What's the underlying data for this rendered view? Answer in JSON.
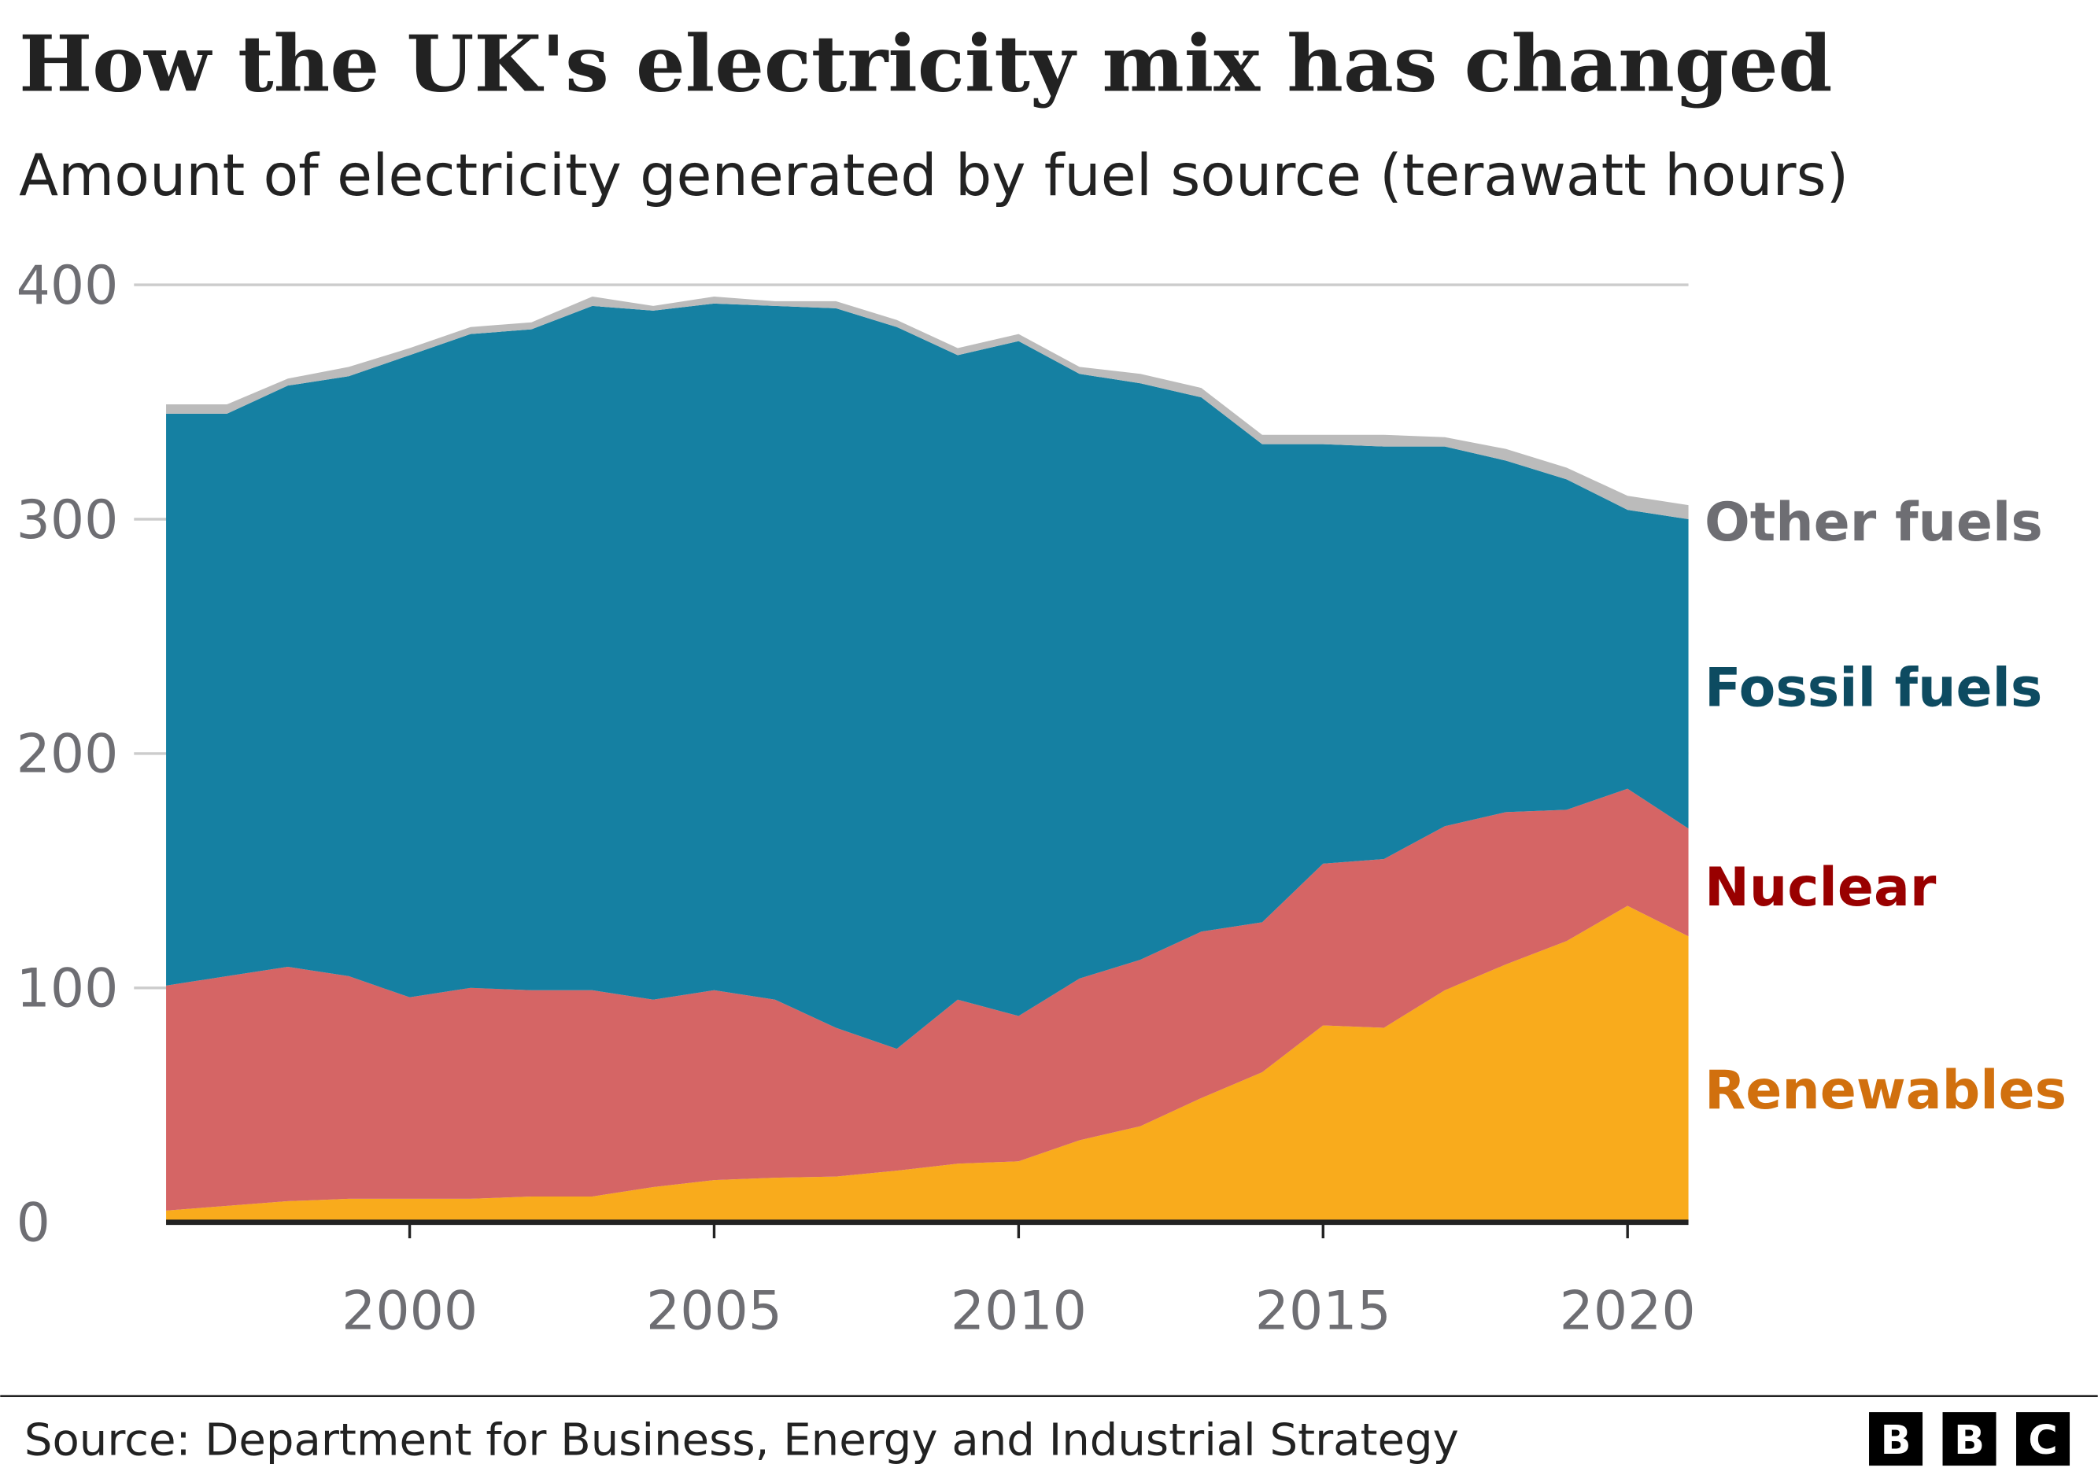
{
  "chart_data": {
    "type": "area",
    "stacked": true,
    "title": "How the UK's electricity mix has changed",
    "subtitle": "Amount of electricity generated by fuel source (terawatt hours)",
    "xlabel": "",
    "ylabel": "",
    "x": [
      1996,
      1997,
      1998,
      1999,
      2000,
      2001,
      2002,
      2003,
      2004,
      2005,
      2006,
      2007,
      2008,
      2009,
      2010,
      2011,
      2012,
      2013,
      2014,
      2015,
      2016,
      2017,
      2018,
      2019,
      2020,
      2021
    ],
    "xlim": [
      1996,
      2021
    ],
    "ylim": [
      0,
      400
    ],
    "xticks": [
      "2000",
      "2005",
      "2010",
      "2015",
      "2020"
    ],
    "yticks": [
      "0",
      "100",
      "200",
      "300",
      "400"
    ],
    "grid": true,
    "legend": "direct labels right",
    "series": [
      {
        "name": "Renewables",
        "color": "#f9ab1c",
        "label_color": "#d1700e",
        "values": [
          5,
          7,
          9,
          10,
          10,
          10,
          11,
          11,
          15,
          18,
          19,
          19.5,
          22,
          25,
          26,
          35,
          41,
          53,
          64,
          84,
          83,
          99,
          110,
          120,
          135,
          122
        ]
      },
      {
        "name": "Nuclear",
        "color": "#d56565",
        "label_color": "#990000",
        "values": [
          96,
          98,
          100,
          95,
          86,
          90,
          88,
          88,
          80,
          81,
          76,
          63.5,
          52,
          70,
          62,
          69,
          71,
          71,
          64,
          69,
          72,
          70,
          65,
          56,
          50,
          46
        ]
      },
      {
        "name": "Fossil fuels",
        "color": "#1580a2",
        "label_color": "#0d4b61",
        "values": [
          244,
          240,
          248,
          256,
          274,
          279,
          282,
          292,
          294,
          293,
          296,
          307,
          308,
          275,
          288,
          258,
          246,
          228,
          204,
          179,
          176,
          162,
          150,
          141,
          119,
          132
        ]
      },
      {
        "name": "Other fuels",
        "color": "#bbbbbb",
        "label_color": "#6e6e73",
        "values": [
          4,
          4,
          3,
          4,
          3,
          3,
          3,
          4,
          2,
          3,
          2,
          3,
          3,
          3,
          3,
          3,
          4,
          4,
          4,
          4,
          5,
          4,
          5,
          5,
          6,
          6
        ]
      }
    ]
  },
  "footer": {
    "source": "Source: Department for Business, Energy and Industrial Strategy",
    "logo": [
      "B",
      "B",
      "C"
    ]
  }
}
